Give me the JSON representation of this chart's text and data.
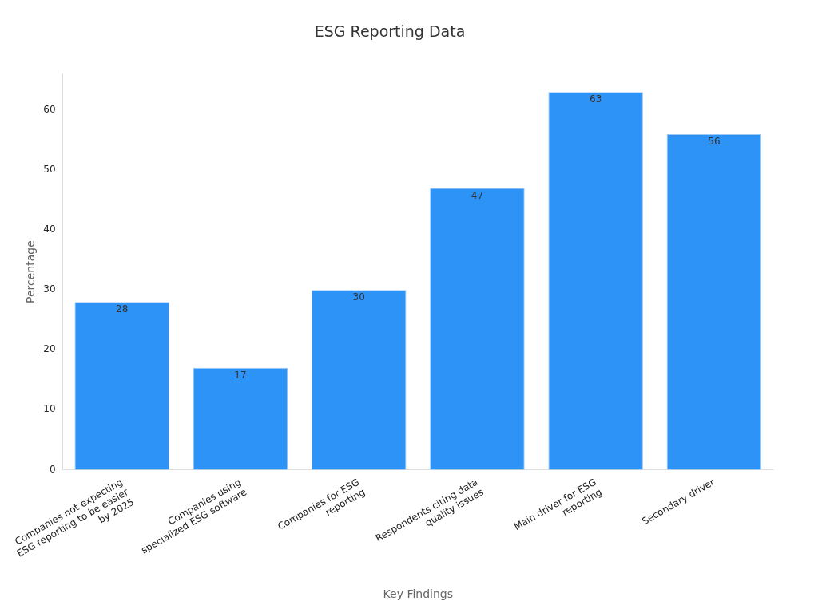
{
  "chart_data": {
    "type": "bar",
    "title": "ESG Reporting Data",
    "xlabel": "Key Findings",
    "ylabel": "Percentage",
    "categories": [
      "Companies not expecting ESG reporting to be easier by 2025",
      "Companies using specialized ESG software",
      "Companies for ESG reporting",
      "Respondents citing data quality issues",
      "Main driver for ESG reporting",
      "Secondary driver"
    ],
    "values": [
      28,
      17,
      30,
      47,
      63,
      56
    ],
    "color": "#2e93f7",
    "ylim": [
      0,
      66
    ],
    "yticks": [
      0,
      10,
      20,
      30,
      40,
      50,
      60
    ],
    "grid": false,
    "legend": false,
    "data_labels": true
  }
}
